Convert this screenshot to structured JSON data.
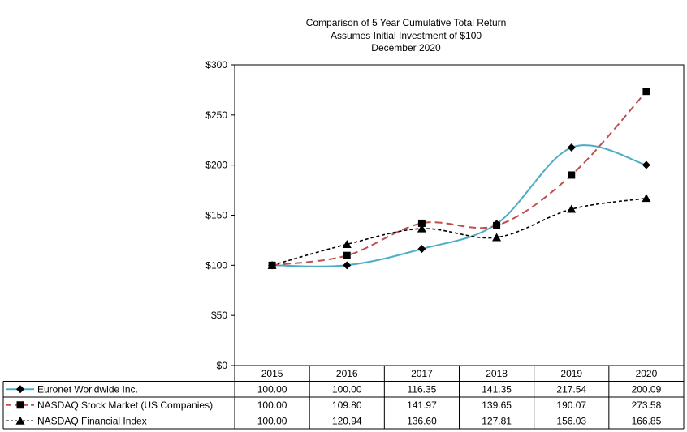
{
  "chart_data": {
    "type": "line",
    "title": "Comparison of 5 Year Cumulative Total Return",
    "subtitle": "Assumes Initial Investment of $100",
    "subtitle2": "December 2020",
    "categories": [
      "2015",
      "2016",
      "2017",
      "2018",
      "2019",
      "2020"
    ],
    "ylim": [
      0,
      300
    ],
    "yticks": [
      0,
      50,
      100,
      150,
      200,
      250,
      300
    ],
    "ytick_labels": [
      "$0",
      "$50",
      "$100",
      "$150",
      "$200",
      "$250",
      "$300"
    ],
    "grid": false,
    "legend": "data-table-left",
    "series": [
      {
        "name": "Euronet Worldwide Inc.",
        "values": [
          100.0,
          100.0,
          116.35,
          141.35,
          217.54,
          200.09
        ],
        "labels": [
          "100.00",
          "100.00",
          "116.35",
          "141.35",
          "217.54",
          "200.09"
        ],
        "color": "#4bacc6",
        "line": "solid",
        "marker": "diamond"
      },
      {
        "name": "NASDAQ Stock Market (US Companies)",
        "values": [
          100.0,
          109.8,
          141.97,
          139.65,
          190.07,
          273.58
        ],
        "labels": [
          "100.00",
          "109.80",
          "141.97",
          "139.65",
          "190.07",
          "273.58"
        ],
        "color": "#c0504d",
        "line": "dashed",
        "marker": "square"
      },
      {
        "name": "NASDAQ Financial Index",
        "values": [
          100.0,
          120.94,
          136.6,
          127.81,
          156.03,
          166.85
        ],
        "labels": [
          "100.00",
          "120.94",
          "136.60",
          "127.81",
          "156.03",
          "166.85"
        ],
        "color": "#000000",
        "line": "dotted",
        "marker": "triangle"
      }
    ]
  }
}
